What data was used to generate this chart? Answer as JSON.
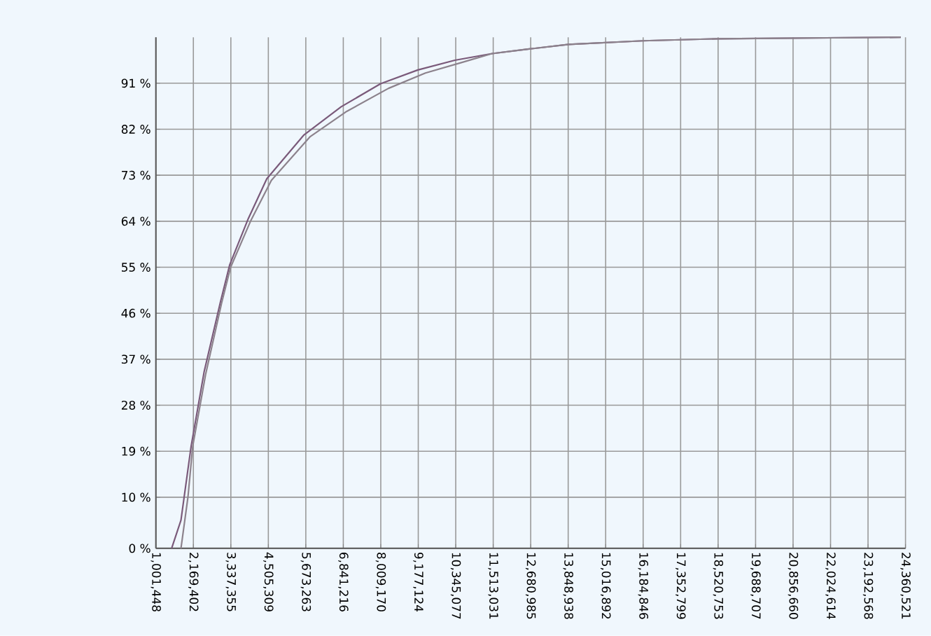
{
  "chart_data": {
    "type": "line",
    "xlim": [
      1001448,
      24360521
    ],
    "ylim": [
      0,
      100
    ],
    "xticks": [
      {
        "value": 1001448,
        "label": "1,001,448"
      },
      {
        "value": 2169402,
        "label": "2,169,402"
      },
      {
        "value": 3337355,
        "label": "3,337,355"
      },
      {
        "value": 4505309,
        "label": "4,505,309"
      },
      {
        "value": 5673263,
        "label": "5,673,263"
      },
      {
        "value": 6841216,
        "label": "6,841,216"
      },
      {
        "value": 8009170,
        "label": "8,009,170"
      },
      {
        "value": 9177124,
        "label": "9,177,124"
      },
      {
        "value": 10345077,
        "label": "10,345,077"
      },
      {
        "value": 11513031,
        "label": "11,513,031"
      },
      {
        "value": 12680985,
        "label": "12,680,985"
      },
      {
        "value": 13848938,
        "label": "13,848,938"
      },
      {
        "value": 15016892,
        "label": "15,016,892"
      },
      {
        "value": 16184846,
        "label": "16,184,846"
      },
      {
        "value": 17352799,
        "label": "17,352,799"
      },
      {
        "value": 18520753,
        "label": "18,520,753"
      },
      {
        "value": 19688707,
        "label": "19,688,707"
      },
      {
        "value": 20856660,
        "label": "20,856,660"
      },
      {
        "value": 22024614,
        "label": "22,024,614"
      },
      {
        "value": 23192568,
        "label": "23,192,568"
      },
      {
        "value": 24360521,
        "label": "24,360,521"
      }
    ],
    "yticks": [
      {
        "value": 0,
        "label": "0 %"
      },
      {
        "value": 10,
        "label": "10 %"
      },
      {
        "value": 19,
        "label": "19 %"
      },
      {
        "value": 28,
        "label": "28 %"
      },
      {
        "value": 37,
        "label": "37 %"
      },
      {
        "value": 46,
        "label": "46 %"
      },
      {
        "value": 55,
        "label": "55 %"
      },
      {
        "value": 64,
        "label": "64 %"
      },
      {
        "value": 73,
        "label": "73 %"
      },
      {
        "value": 82,
        "label": "82 %"
      },
      {
        "value": 91,
        "label": "91 %"
      }
    ],
    "grid": true,
    "line_style": "solid",
    "series": [
      {
        "color": "#7a5a7a",
        "x": [
          1492000,
          1783000,
          2100000,
          2503000,
          3012000,
          3303000,
          3880000,
          4457000,
          5617000,
          6776000,
          8004000,
          9164000,
          10318000,
          11478000,
          12637000,
          13866000,
          16180000,
          18498000,
          24212000
        ],
        "values": [
          0,
          5.5,
          20,
          34.5,
          48.2,
          55.5,
          64.5,
          72.3,
          80.9,
          86.4,
          90.9,
          93.6,
          95.5,
          96.8,
          97.7,
          98.6,
          99.3,
          99.7,
          100
        ]
      },
      {
        "color": "#8c828c",
        "x": [
          1783000,
          2000000,
          2150000,
          2550000,
          3050000,
          3330000,
          3950000,
          4600000,
          5800000,
          6950000,
          8250000,
          9400000,
          10500000,
          11478000,
          12637000,
          13866000,
          16180000,
          18498000,
          24212000
        ],
        "values": [
          0,
          10,
          20,
          34,
          48,
          55,
          64,
          72,
          80.5,
          85.5,
          90,
          93,
          95,
          96.8,
          97.7,
          98.6,
          99.3,
          99.7,
          100
        ]
      }
    ]
  }
}
